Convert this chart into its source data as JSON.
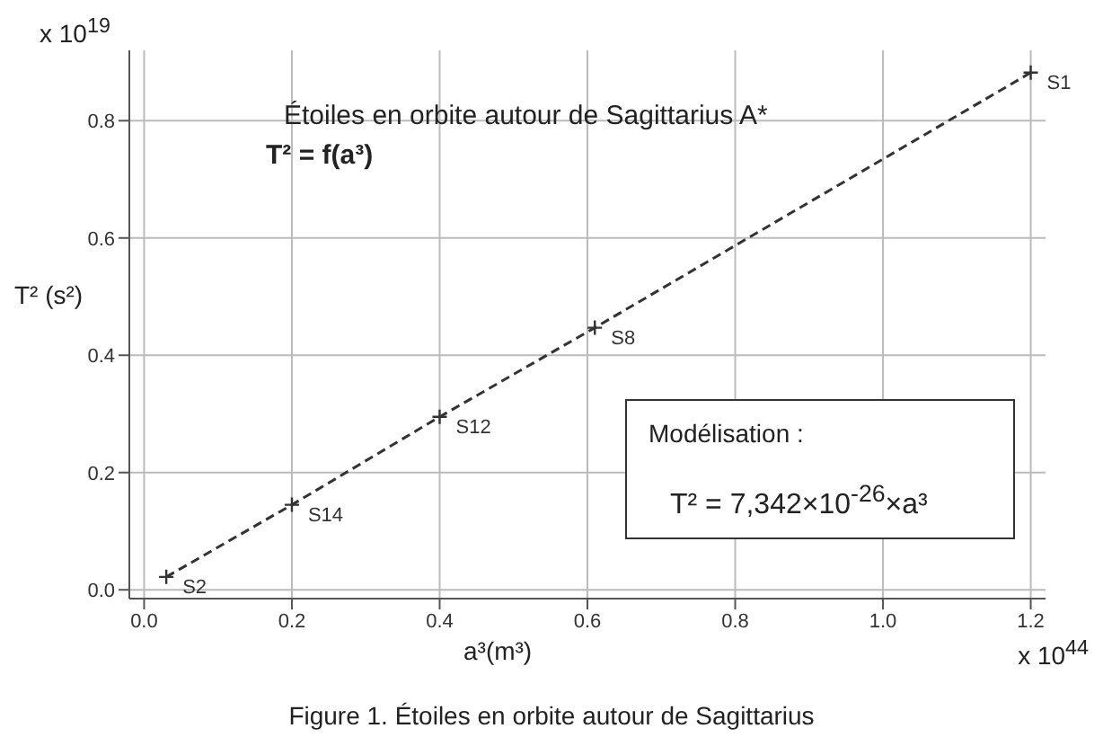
{
  "chart_data": {
    "type": "line",
    "title": "Étoiles en orbite autour de Sagittarius A*",
    "subtitle": "T² = f(a³)",
    "xlabel": "a³(m³)",
    "ylabel": "T² (s²)",
    "annotations": [
      "x 10$^{19}$",
      "x 10$^{44}$",
      "Modélisation :",
      "T² = 7,342×10$^{-26}$×a³",
      "Figure 1. Étoiles en orbite autour de Sagittarius",
      {
        "text": "S2",
        "x": 0.03,
        "y": 0.022
      },
      {
        "text": "S14",
        "x": 0.2,
        "y": 0.145
      },
      {
        "text": "S12",
        "x": 0.4,
        "y": 0.295
      },
      {
        "text": "S8",
        "x": 0.61,
        "y": 0.447
      },
      {
        "text": "S1",
        "x": 1.2,
        "y": 0.882
      }
    ],
    "x": [
      0.03,
      0.2,
      0.4,
      0.61,
      1.2
    ],
    "series": [
      {
        "color": "#333333",
        "values": [
          0.022,
          0.145,
          0.295,
          0.447,
          0.882
        ]
      }
    ],
    "xlim": [
      -0.02,
      1.22
    ],
    "ylim": [
      -0.015,
      0.92
    ],
    "xticks": [
      {
        "value": 0,
        "label": "0.0"
      },
      0.2,
      0.4,
      0.6,
      0.8,
      {
        "value": 1,
        "label": "1.0"
      },
      1.2
    ],
    "yticks": [
      {
        "value": 0,
        "label": "0.0"
      },
      0.2,
      0.4,
      0.6,
      0.8
    ],
    "grid": true,
    "marker": "cross",
    "line_style": "dashed"
  }
}
